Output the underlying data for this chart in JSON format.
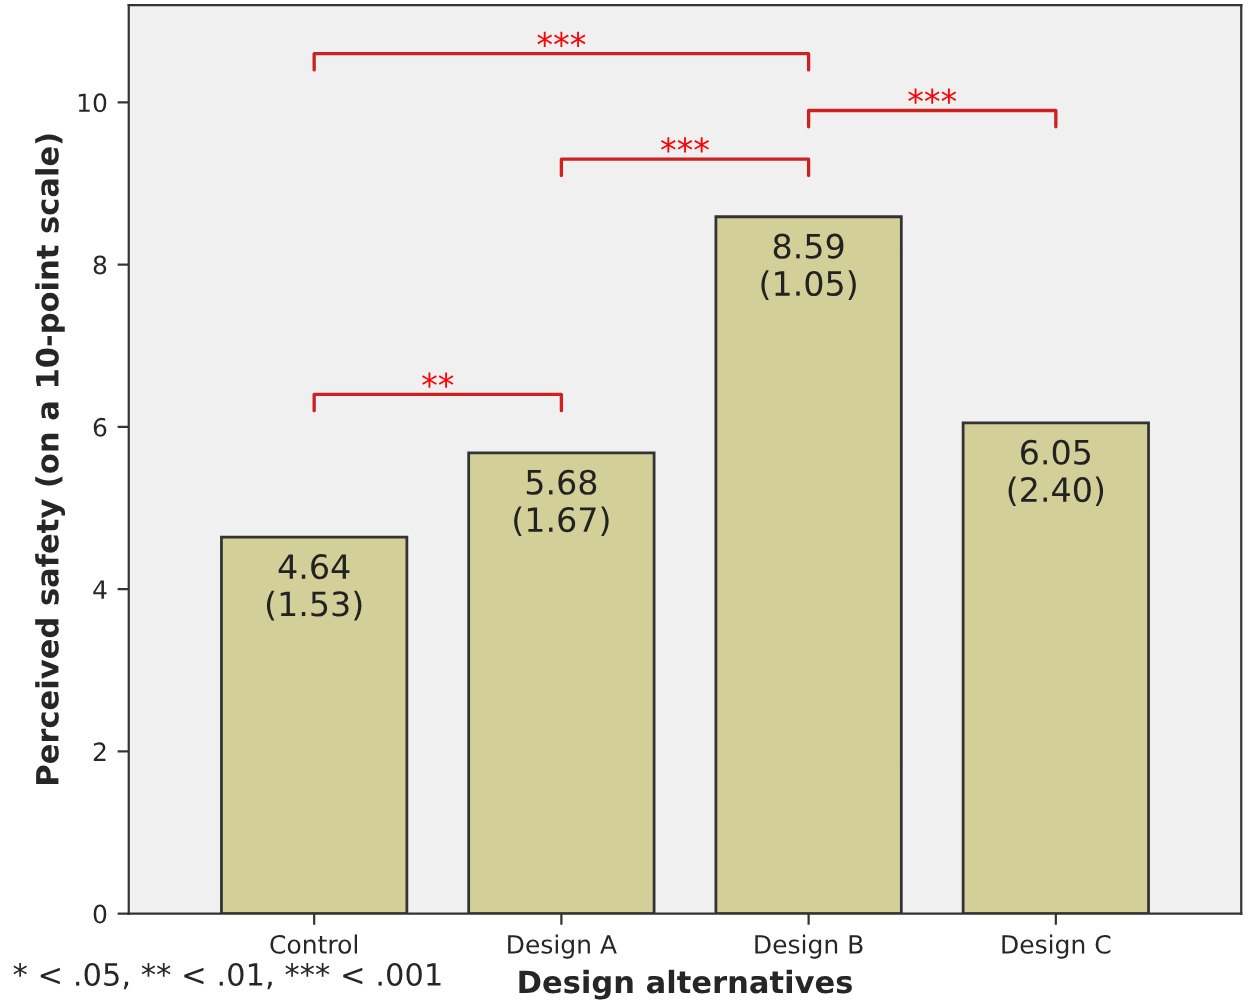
{
  "chart_data": {
    "type": "bar",
    "xlabel": "Design alternatives",
    "ylabel": "Perceived safety (on a 10-point scale)",
    "categories": [
      "Control",
      "Design A",
      "Design B",
      "Design C"
    ],
    "values": [
      4.64,
      5.68,
      8.59,
      6.05
    ],
    "color": "#d3cf98",
    "value_labels": [
      "4.64\n(1.53)",
      "5.68\n(1.67)",
      "8.59\n(1.05)",
      "6.05\n(2.40)"
    ],
    "ylim": [
      0,
      11.2
    ],
    "yticks": [
      0,
      2,
      4,
      6,
      8,
      10
    ],
    "grid": false,
    "annotations": [
      "***",
      "***",
      "***",
      "**",
      "* < .05, ** < .01, *** < .001"
    ]
  }
}
